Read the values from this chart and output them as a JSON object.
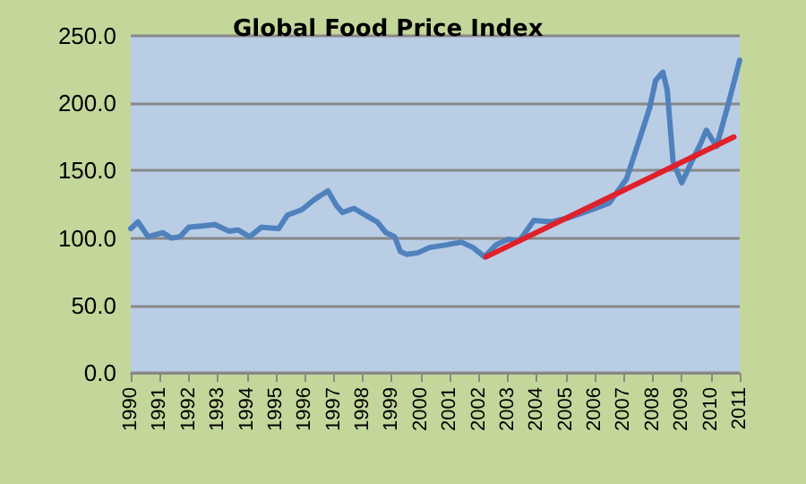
{
  "chart_data": {
    "type": "line",
    "title": "Global Food Price Index",
    "xlim": [
      1990,
      2011
    ],
    "xticks": [
      1990,
      1991,
      1992,
      1993,
      1994,
      1995,
      1996,
      1997,
      1998,
      1999,
      2000,
      2001,
      2002,
      2003,
      2004,
      2005,
      2006,
      2007,
      2008,
      2009,
      2010,
      2011
    ],
    "ylim": [
      0,
      250
    ],
    "yticks": [
      {
        "value": 0,
        "label": "0.0"
      },
      {
        "value": 50,
        "label": "50.0"
      },
      {
        "value": 100,
        "label": "100.0"
      },
      {
        "value": 150,
        "label": "150.0"
      },
      {
        "value": 200,
        "label": "200.0"
      },
      {
        "value": 250,
        "label": "250.0"
      }
    ],
    "grid": "y",
    "marker": "none",
    "line_style": "solid",
    "series": [
      {
        "color": "#4f81bd",
        "x": [
          1990.0,
          1990.25,
          1990.6,
          1991.1,
          1991.4,
          1991.7,
          1992.0,
          1992.5,
          1992.9,
          1993.4,
          1993.7,
          1994.1,
          1994.5,
          1995.1,
          1995.4,
          1995.9,
          1996.3,
          1996.5,
          1996.8,
          1997.1,
          1997.3,
          1997.7,
          1998.1,
          1998.5,
          1998.8,
          1999.1,
          1999.3,
          1999.5,
          1999.9,
          2000.3,
          2000.9,
          2001.4,
          2001.8,
          2002.2,
          2002.6,
          2003.0,
          2003.4,
          2003.9,
          2004.5,
          2005.1,
          2005.9,
          2006.5,
          2007.1,
          2007.6,
          2007.9,
          2008.1,
          2008.35,
          2008.5,
          2008.7,
          2009.0,
          2009.35,
          2009.65,
          2009.85,
          2010.2,
          2010.6,
          2011.0
        ],
        "values": [
          107,
          112,
          101,
          104,
          100,
          101,
          108,
          109,
          110,
          105,
          106,
          101,
          108,
          107,
          117,
          121,
          128,
          131,
          135,
          124,
          119,
          122,
          117,
          112,
          104,
          101,
          90,
          88,
          89,
          93,
          95,
          97,
          93,
          86,
          95,
          99,
          98,
          113,
          112,
          115,
          121,
          126,
          144,
          177,
          197,
          217,
          223,
          210,
          157,
          141,
          157,
          170,
          180,
          168,
          199,
          232
        ]
      },
      {
        "type": "line",
        "color": "#e0202a",
        "x": [
          2002.25,
          2010.8
        ],
        "values": [
          86,
          175
        ]
      }
    ]
  }
}
